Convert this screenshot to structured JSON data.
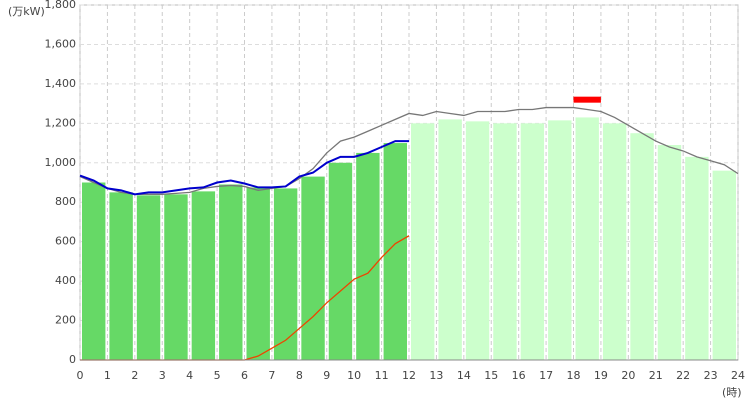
{
  "chart_data": {
    "type": "bar",
    "y_label": "(万kW)",
    "x_label": "(時)",
    "xlim": [
      0,
      24
    ],
    "xticks": [
      0,
      1,
      2,
      3,
      4,
      5,
      6,
      7,
      8,
      9,
      10,
      11,
      12,
      13,
      14,
      15,
      16,
      17,
      18,
      19,
      20,
      21,
      22,
      23,
      24
    ],
    "ylim": [
      0,
      1800
    ],
    "yticks": [
      0,
      200,
      400,
      600,
      800,
      {
        "value": 1000,
        "label": "1,000"
      },
      {
        "value": 1200,
        "label": "1,200"
      },
      {
        "value": 1400,
        "label": "1,400"
      },
      {
        "value": 1600,
        "label": "1,600"
      },
      {
        "value": 1800,
        "label": "1,800"
      }
    ],
    "grid": true,
    "bars": [
      {
        "color": "#66d966",
        "x": [
          0,
          1,
          2,
          3,
          4,
          5,
          6,
          7,
          8,
          9,
          10,
          11
        ],
        "values": [
          900,
          850,
          835,
          840,
          855,
          890,
          875,
          870,
          930,
          1000,
          1050,
          1100
        ]
      },
      {
        "color": "#ccffcc",
        "x": [
          12,
          13,
          14,
          15,
          16,
          17,
          18,
          19,
          20,
          21,
          22,
          23
        ],
        "values": [
          1200,
          1220,
          1210,
          1200,
          1200,
          1215,
          1230,
          1200,
          1150,
          1090,
          1030,
          960
        ]
      }
    ],
    "peak": {
      "x": [
        18,
        19
      ],
      "value": 1320,
      "color": "#ff0000"
    },
    "series": [
      {
        "color": "#777777",
        "x": [
          0,
          0.5,
          1,
          1.5,
          2,
          2.5,
          3,
          3.5,
          4,
          4.5,
          5,
          5.5,
          6,
          6.5,
          7,
          7.5,
          8,
          8.5,
          9,
          9.5,
          10,
          10.5,
          11,
          11.5,
          12,
          12.5,
          13,
          13.5,
          14,
          14.5,
          15,
          15.5,
          16,
          16.5,
          17,
          17.5,
          18,
          18.5,
          19,
          19.5,
          20,
          20.5,
          21,
          21.5,
          22,
          22.5,
          23,
          23.5,
          24
        ],
        "values": [
          930,
          900,
          870,
          850,
          840,
          840,
          840,
          845,
          850,
          870,
          880,
          885,
          880,
          860,
          870,
          880,
          920,
          970,
          1050,
          1110,
          1130,
          1160,
          1190,
          1220,
          1250,
          1240,
          1260,
          1250,
          1240,
          1260,
          1260,
          1260,
          1270,
          1270,
          1280,
          1280,
          1280,
          1270,
          1260,
          1230,
          1190,
          1150,
          1110,
          1080,
          1060,
          1030,
          1010,
          990,
          945
        ]
      },
      {
        "color": "#0000cc",
        "x": [
          0,
          0.5,
          1,
          1.5,
          2,
          2.5,
          3,
          3.5,
          4,
          4.5,
          5,
          5.5,
          6,
          6.5,
          7,
          7.5,
          8,
          8.5,
          9,
          9.5,
          10,
          10.5,
          11,
          11.5,
          12
        ],
        "values": [
          935,
          910,
          870,
          860,
          840,
          850,
          850,
          860,
          870,
          875,
          900,
          910,
          895,
          875,
          875,
          880,
          930,
          950,
          1000,
          1030,
          1030,
          1050,
          1080,
          1110,
          1110
        ]
      },
      {
        "color": "#ee4400",
        "x": [
          0,
          1,
          2,
          3,
          4,
          5,
          6,
          6.5,
          7,
          7.5,
          8,
          8.5,
          9,
          9.5,
          10,
          10.5,
          11,
          11.5,
          12
        ],
        "values": [
          0,
          0,
          0,
          0,
          0,
          0,
          0,
          20,
          60,
          100,
          160,
          220,
          290,
          350,
          410,
          440,
          520,
          590,
          630
        ]
      }
    ]
  }
}
